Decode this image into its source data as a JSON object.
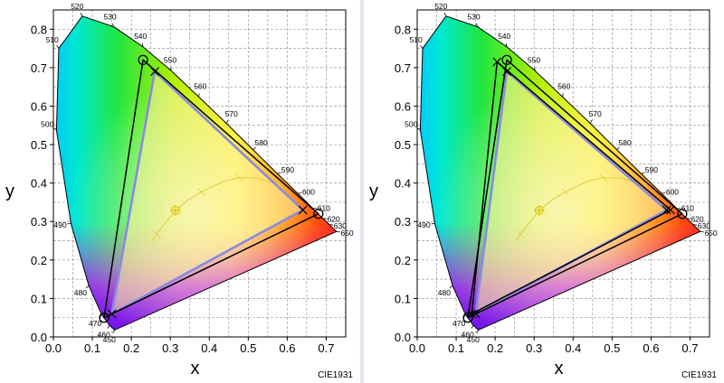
{
  "chart_data": [
    {
      "type": "scatter",
      "title": "",
      "xlabel": "x",
      "ylabel": "y",
      "xlim": [
        0.0,
        0.75
      ],
      "ylim": [
        0.0,
        0.85
      ],
      "xticks": [
        "0.0",
        "0.1",
        "0.2",
        "0.3",
        "0.4",
        "0.5",
        "0.6",
        "0.7"
      ],
      "yticks": [
        "0.0",
        "0.1",
        "0.2",
        "0.3",
        "0.4",
        "0.5",
        "0.6",
        "0.7",
        "0.8"
      ],
      "grid": true,
      "watermark": "CIE1931",
      "spectral_locus": [
        {
          "nm": "450",
          "x": 0.157,
          "y": 0.018
        },
        {
          "nm": "460",
          "x": 0.144,
          "y": 0.03
        },
        {
          "nm": "470",
          "x": 0.124,
          "y": 0.058
        },
        {
          "nm": "480",
          "x": 0.091,
          "y": 0.133
        },
        {
          "nm": "490",
          "x": 0.045,
          "y": 0.295
        },
        {
          "nm": "500",
          "x": 0.008,
          "y": 0.538
        },
        {
          "nm": "510",
          "x": 0.014,
          "y": 0.75
        },
        {
          "nm": "520",
          "x": 0.074,
          "y": 0.834
        },
        {
          "nm": "530",
          "x": 0.155,
          "y": 0.806
        },
        {
          "nm": "540",
          "x": 0.23,
          "y": 0.754
        },
        {
          "nm": "550",
          "x": 0.302,
          "y": 0.692
        },
        {
          "nm": "560",
          "x": 0.373,
          "y": 0.624
        },
        {
          "nm": "570",
          "x": 0.444,
          "y": 0.555
        },
        {
          "nm": "580",
          "x": 0.512,
          "y": 0.487
        },
        {
          "nm": "590",
          "x": 0.575,
          "y": 0.424
        },
        {
          "nm": "600",
          "x": 0.627,
          "y": 0.373
        },
        {
          "nm": "610",
          "x": 0.666,
          "y": 0.334
        },
        {
          "nm": "620",
          "x": 0.691,
          "y": 0.308
        },
        {
          "nm": "630",
          "x": 0.708,
          "y": 0.292
        },
        {
          "nm": "650",
          "x": 0.726,
          "y": 0.274
        }
      ],
      "series": [
        {
          "name": "",
          "color": "#000000",
          "marker": "circle",
          "points": [
            [
              0.68,
              0.32
            ],
            [
              0.23,
              0.72
            ],
            [
              0.13,
              0.05
            ]
          ]
        },
        {
          "name": "",
          "color": "#8a8ae0",
          "marker": "x",
          "points": [
            [
              0.64,
              0.33
            ],
            [
              0.26,
              0.69
            ],
            [
              0.15,
              0.06
            ]
          ]
        }
      ]
    },
    {
      "type": "scatter",
      "title": "",
      "xlabel": "x",
      "ylabel": "y",
      "xlim": [
        0.0,
        0.75
      ],
      "ylim": [
        0.0,
        0.85
      ],
      "xticks": [
        "0.0",
        "0.1",
        "0.2",
        "0.3",
        "0.4",
        "0.5",
        "0.6",
        "0.7"
      ],
      "yticks": [
        "0.0",
        "0.1",
        "0.2",
        "0.3",
        "0.4",
        "0.5",
        "0.6",
        "0.7",
        "0.8"
      ],
      "grid": true,
      "watermark": "CIE1931",
      "spectral_locus": [
        {
          "nm": "450",
          "x": 0.157,
          "y": 0.018
        },
        {
          "nm": "460",
          "x": 0.144,
          "y": 0.03
        },
        {
          "nm": "470",
          "x": 0.124,
          "y": 0.058
        },
        {
          "nm": "480",
          "x": 0.091,
          "y": 0.133
        },
        {
          "nm": "490",
          "x": 0.045,
          "y": 0.295
        },
        {
          "nm": "500",
          "x": 0.008,
          "y": 0.538
        },
        {
          "nm": "510",
          "x": 0.014,
          "y": 0.75
        },
        {
          "nm": "520",
          "x": 0.074,
          "y": 0.834
        },
        {
          "nm": "530",
          "x": 0.155,
          "y": 0.806
        },
        {
          "nm": "540",
          "x": 0.23,
          "y": 0.754
        },
        {
          "nm": "550",
          "x": 0.302,
          "y": 0.692
        },
        {
          "nm": "560",
          "x": 0.373,
          "y": 0.624
        },
        {
          "nm": "570",
          "x": 0.444,
          "y": 0.555
        },
        {
          "nm": "580",
          "x": 0.512,
          "y": 0.487
        },
        {
          "nm": "590",
          "x": 0.575,
          "y": 0.424
        },
        {
          "nm": "600",
          "x": 0.627,
          "y": 0.373
        },
        {
          "nm": "610",
          "x": 0.666,
          "y": 0.334
        },
        {
          "nm": "620",
          "x": 0.691,
          "y": 0.308
        },
        {
          "nm": "630",
          "x": 0.708,
          "y": 0.292
        },
        {
          "nm": "650",
          "x": 0.726,
          "y": 0.274
        }
      ],
      "series": [
        {
          "name": "",
          "color": "#000000",
          "marker": "circle",
          "points": [
            [
              0.68,
              0.32
            ],
            [
              0.23,
              0.72
            ],
            [
              0.13,
              0.05
            ]
          ]
        },
        {
          "name": "",
          "color": "#000000",
          "marker": "x",
          "points": [
            [
              0.65,
              0.33
            ],
            [
              0.205,
              0.715
            ],
            [
              0.14,
              0.06
            ]
          ]
        },
        {
          "name": "",
          "color": "#8a8ae0",
          "marker": "x",
          "points": [
            [
              0.64,
              0.33
            ],
            [
              0.23,
              0.69
            ],
            [
              0.15,
              0.06
            ]
          ]
        }
      ]
    }
  ]
}
